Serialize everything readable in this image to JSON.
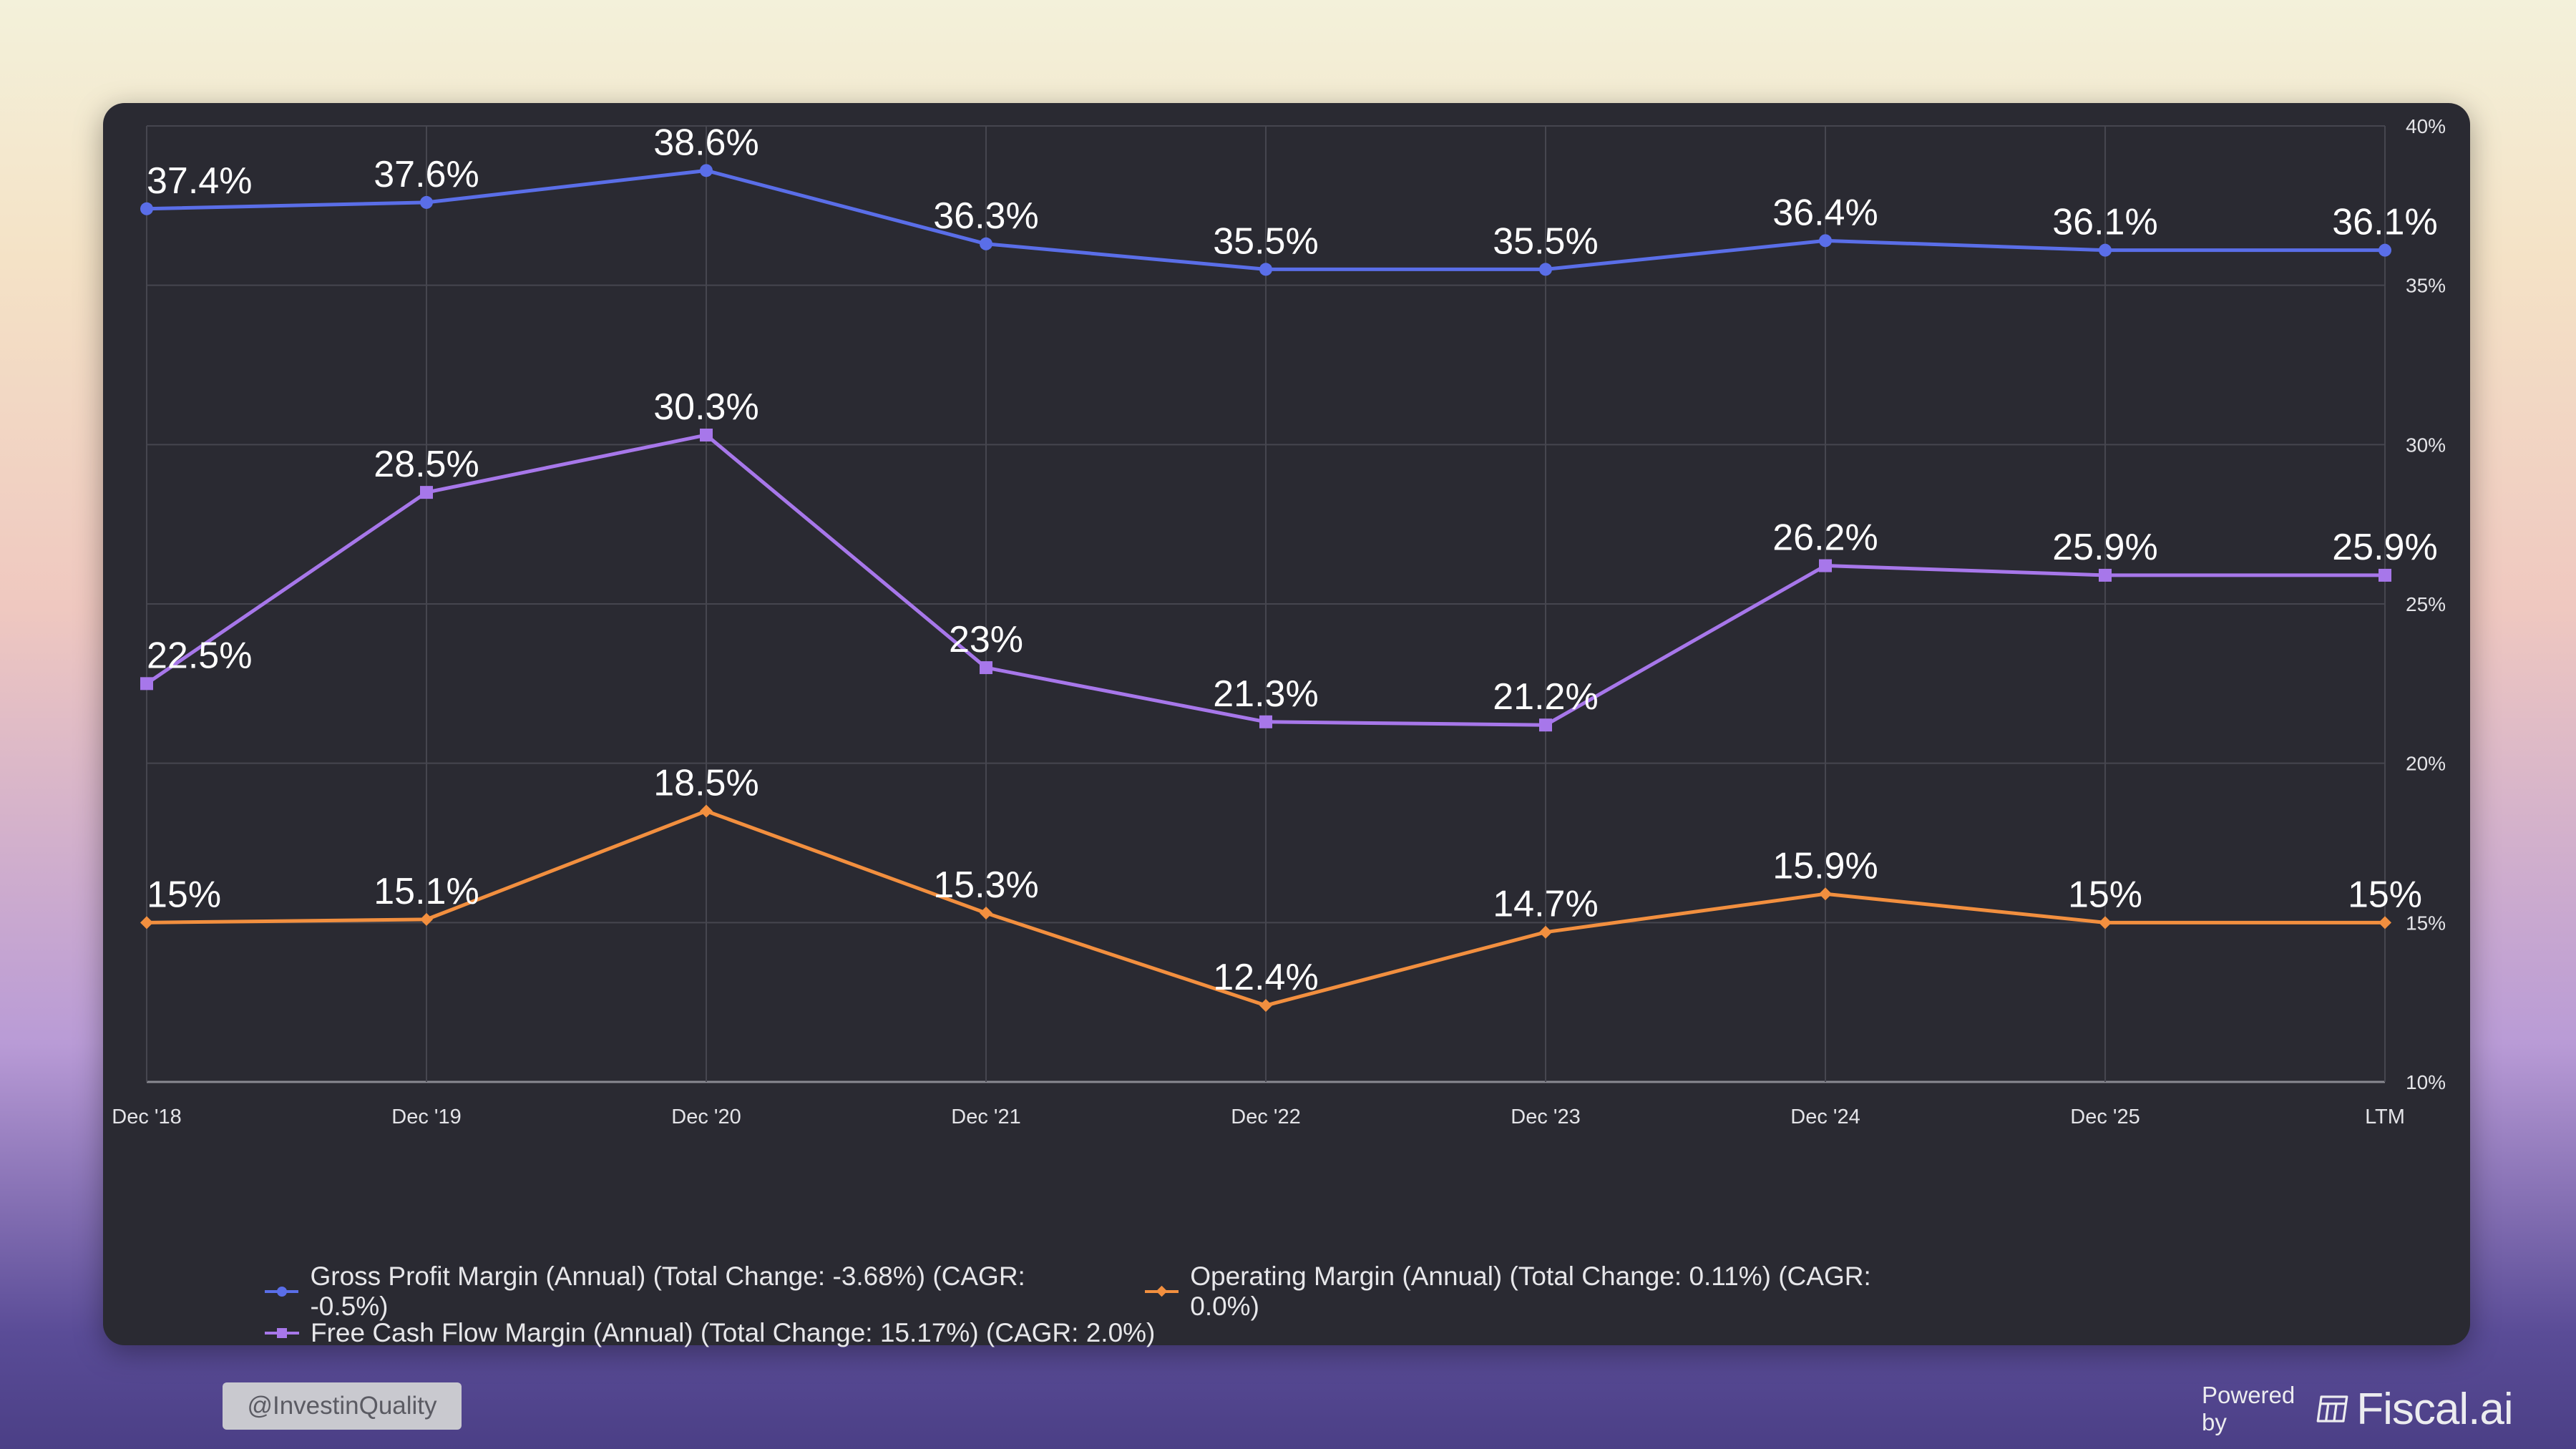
{
  "chart_data": {
    "type": "line",
    "categories": [
      "Dec '18",
      "Dec '19",
      "Dec '20",
      "Dec '21",
      "Dec '22",
      "Dec '23",
      "Dec '24",
      "Dec '25",
      "LTM"
    ],
    "series": [
      {
        "name": "Gross Profit Margin (Annual) (Total Change: -3.68%) (CAGR: -0.5%)",
        "values": [
          37.4,
          37.6,
          38.6,
          36.3,
          35.5,
          35.5,
          36.4,
          36.1,
          36.1
        ],
        "labels": [
          "37.4%",
          "37.6%",
          "38.6%",
          "36.3%",
          "35.5%",
          "35.5%",
          "36.4%",
          "36.1%",
          "36.1%"
        ],
        "color": "#5a6ee8",
        "marker": "circle"
      },
      {
        "name": "Free Cash Flow Margin (Annual) (Total Change: 15.17%) (CAGR: 2.0%)",
        "values": [
          22.5,
          28.5,
          30.3,
          23.0,
          21.3,
          21.2,
          26.2,
          25.9,
          25.9
        ],
        "labels": [
          "22.5%",
          "28.5%",
          "30.3%",
          "23%",
          "21.3%",
          "21.2%",
          "26.2%",
          "25.9%",
          "25.9%"
        ],
        "color": "#a777ea",
        "marker": "square"
      },
      {
        "name": "Operating Margin (Annual) (Total Change: 0.11%) (CAGR: 0.0%)",
        "values": [
          15.0,
          15.1,
          18.5,
          15.3,
          12.4,
          14.7,
          15.9,
          15.0,
          15.0
        ],
        "labels": [
          "15%",
          "15.1%",
          "18.5%",
          "15.3%",
          "12.4%",
          "14.7%",
          "15.9%",
          "15%",
          "15%"
        ],
        "color": "#f28f3f",
        "marker": "diamond"
      }
    ],
    "ylim": [
      10,
      40
    ],
    "yticks": [
      "10%",
      "15%",
      "20%",
      "25%",
      "30%",
      "35%",
      "40%"
    ],
    "grid": true,
    "legend_position": "bottom-left"
  },
  "legend": {
    "gross": "Gross Profit Margin (Annual) (Total Change: -3.68%) (CAGR: -0.5%)",
    "operating": "Operating Margin (Annual) (Total Change: 0.11%) (CAGR: 0.0%)",
    "fcf": "Free Cash Flow Margin (Annual) (Total Change: 15.17%) (CAGR: 2.0%)"
  },
  "colors": {
    "gross": "#5a6ee8",
    "operating": "#f28f3f",
    "fcf": "#a777ea"
  },
  "footer": {
    "handle": "@InvestinQuality",
    "powered_by": "Powered by",
    "brand": "Fiscal.ai",
    "brand_icon": "chart-table-icon"
  }
}
